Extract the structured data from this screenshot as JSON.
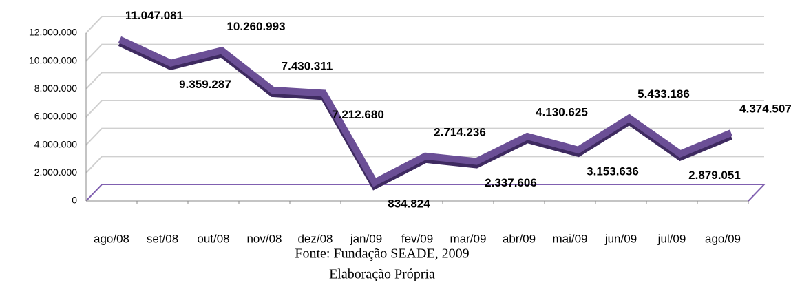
{
  "chart_data": {
    "type": "line",
    "categories": [
      "ago/08",
      "set/08",
      "out/08",
      "nov/08",
      "dez/08",
      "jan/09",
      "fev/09",
      "mar/09",
      "abr/09",
      "mai/09",
      "jun/09",
      "jul/09",
      "ago/09"
    ],
    "values": [
      11047081,
      9359287,
      10260993,
      7430311,
      7212680,
      834824,
      2714236,
      2337606,
      4130625,
      3153636,
      5433186,
      2879051,
      4374507
    ],
    "value_labels": [
      "11.047.081",
      "9.359.287",
      "10.260.993",
      "7.430.311",
      "7.212.680",
      "834.824",
      "2.714.236",
      "2.337.606",
      "4.130.625",
      "3.153.636",
      "5.433.186",
      "2.879.051",
      "4.374.507"
    ],
    "color": "#6b4f96",
    "ylim": [
      0,
      12000000
    ],
    "yticks": [
      0,
      {
        "value": 2000000,
        "label": "2.000.000"
      },
      {
        "value": 4000000,
        "label": "4.000.000"
      },
      {
        "value": 6000000,
        "label": "6.000.000"
      },
      {
        "value": 8000000,
        "label": "8.000.000"
      },
      {
        "value": 10000000,
        "label": "10.000.000"
      },
      {
        "value": 12000000,
        "label": "12.000.000"
      }
    ],
    "grid": true,
    "source": "Fonte: Fundação SEADE, 2009",
    "caption": "Elaboração Própria"
  }
}
